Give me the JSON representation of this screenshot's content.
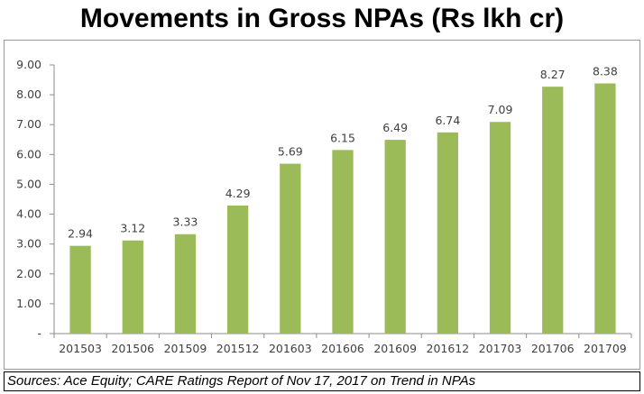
{
  "chart_data": {
    "type": "bar",
    "title": "Movements in Gross NPAs (Rs lkh cr)",
    "categories": [
      "201503",
      "201506",
      "201509",
      "201512",
      "201603",
      "201606",
      "201609",
      "201612",
      "201703",
      "201706",
      "201709"
    ],
    "values": [
      2.94,
      3.12,
      3.33,
      4.29,
      5.69,
      6.15,
      6.49,
      6.74,
      7.09,
      8.27,
      8.38
    ],
    "value_labels": [
      "2.94",
      "3.12",
      "3.33",
      "4.29",
      "5.69",
      "6.15",
      "6.49",
      "6.74",
      "7.09",
      "8.27",
      "8.38"
    ],
    "ylim": [
      0,
      9
    ],
    "yticks": [
      "-",
      "1.00",
      "2.00",
      "3.00",
      "4.00",
      "5.00",
      "6.00",
      "7.00",
      "8.00",
      "9.00"
    ],
    "bar_color": "#9bbb59",
    "grid": false,
    "legend": "none"
  },
  "source_note": "Sources: Ace Equity; CARE Ratings Report of Nov 17, 2017 on Trend in NPAs"
}
